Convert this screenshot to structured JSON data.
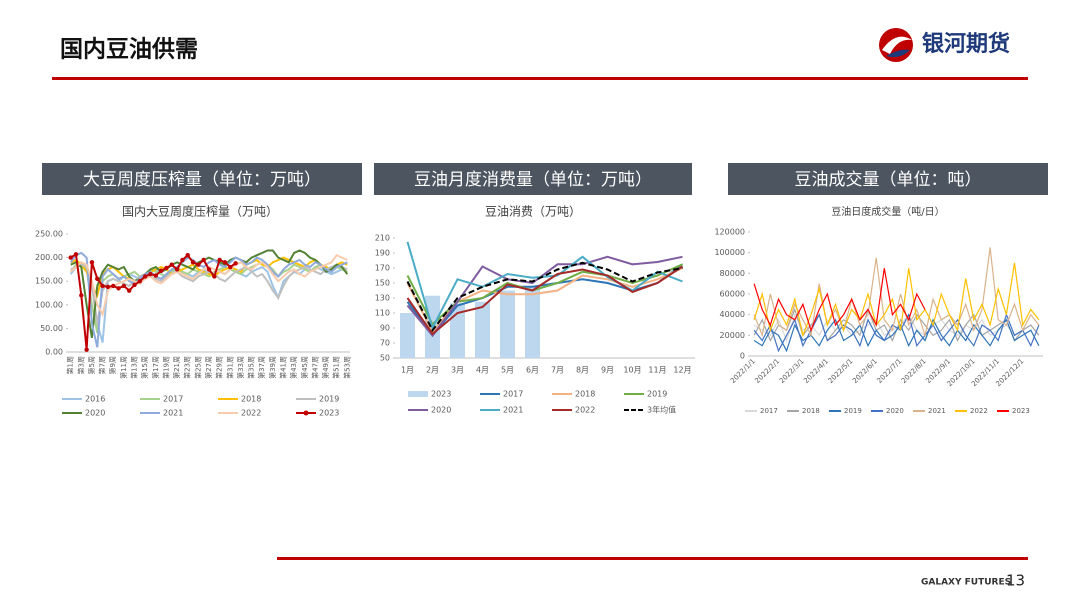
{
  "header": {
    "title": "国内豆油供需",
    "logo": "银河期货"
  },
  "footer": {
    "brand": "GALAXY FUTURES",
    "page": "13"
  },
  "chart_data": [
    {
      "type": "line",
      "header": "大豆周度压榨量（单位：万吨）",
      "title": "国内大豆周度压榨量（万吨）",
      "categories": [
        "第1周",
        null,
        "第3周",
        null,
        "第5周",
        null,
        "第7周",
        null,
        "第9周",
        null,
        "第11周",
        null,
        "第13周",
        null,
        "第15周",
        null,
        "第17周",
        null,
        "第19周",
        null,
        "第21周",
        null,
        "第23周",
        null,
        "第25周",
        null,
        "第27周",
        null,
        "第29周",
        null,
        "第31周",
        null,
        "第33周",
        null,
        "第35周",
        null,
        "第37周",
        null,
        "第39周",
        null,
        "第41周",
        null,
        "第43周",
        null,
        "第45周",
        null,
        "第47周",
        null,
        "第49周",
        null,
        "第51周",
        null,
        "第53周"
      ],
      "ylim": [
        0,
        250
      ],
      "yticks": [
        {
          "value": 0,
          "label": "0.00"
        },
        {
          "value": 50,
          "label": "50.00"
        },
        {
          "value": 100,
          "label": "100.00"
        },
        {
          "value": 150,
          "label": "150.00"
        },
        {
          "value": 200,
          "label": "200.00"
        },
        {
          "value": 250,
          "label": "250.00"
        }
      ],
      "grid": false,
      "series": [
        {
          "name": "2016",
          "color": "#9dc3e6",
          "values": [
            165,
            180,
            185,
            170,
            140,
            60,
            20,
            150,
            155,
            150,
            160,
            165,
            160,
            155,
            165,
            170,
            175,
            165,
            160,
            170,
            175,
            170,
            165,
            160,
            170,
            175,
            165,
            160,
            170,
            165,
            175,
            170,
            165,
            160,
            170,
            175,
            180,
            170,
            140,
            115,
            150,
            160,
            170,
            165,
            175,
            170,
            180,
            175,
            170,
            165,
            170,
            175,
            170
          ]
        },
        {
          "name": "2017",
          "color": "#a9d18e",
          "values": [
            170,
            185,
            190,
            175,
            100,
            40,
            150,
            160,
            165,
            155,
            160,
            165,
            170,
            160,
            165,
            175,
            170,
            165,
            160,
            170,
            180,
            170,
            165,
            175,
            170,
            165,
            160,
            170,
            175,
            180,
            175,
            170,
            165,
            175,
            180,
            185,
            190,
            185,
            175,
            160,
            170,
            175,
            185,
            180,
            175,
            170,
            180,
            185,
            175,
            170,
            180,
            175,
            170
          ]
        },
        {
          "name": "2018",
          "color": "#ffc000",
          "values": [
            190,
            195,
            185,
            170,
            140,
            120,
            165,
            175,
            180,
            170,
            160,
            155,
            150,
            145,
            160,
            170,
            175,
            180,
            175,
            165,
            170,
            175,
            180,
            185,
            175,
            170,
            165,
            160,
            170,
            175,
            180,
            175,
            170,
            185,
            190,
            195,
            185,
            180,
            190,
            195,
            200,
            195,
            190,
            185,
            180,
            190,
            195,
            185,
            180,
            175,
            185,
            190,
            185
          ]
        },
        {
          "name": "2019",
          "color": "#bfbfbf",
          "values": [
            175,
            180,
            185,
            180,
            140,
            60,
            130,
            150,
            155,
            150,
            145,
            140,
            150,
            160,
            165,
            160,
            155,
            150,
            160,
            165,
            170,
            160,
            155,
            150,
            160,
            165,
            170,
            165,
            155,
            150,
            160,
            170,
            175,
            180,
            170,
            160,
            165,
            150,
            130,
            115,
            140,
            160,
            170,
            175,
            180,
            175,
            170,
            165,
            175,
            180,
            185,
            180,
            175
          ]
        },
        {
          "name": "2020",
          "color": "#548235",
          "values": [
            185,
            190,
            180,
            100,
            30,
            140,
            170,
            185,
            180,
            175,
            180,
            160,
            150,
            155,
            165,
            175,
            180,
            170,
            175,
            185,
            190,
            185,
            180,
            175,
            190,
            195,
            200,
            195,
            190,
            185,
            195,
            200,
            195,
            190,
            200,
            205,
            210,
            215,
            215,
            200,
            195,
            190,
            210,
            215,
            210,
            200,
            195,
            185,
            170,
            175,
            185,
            180,
            165
          ]
        },
        {
          "name": "2021",
          "color": "#8faadc",
          "values": [
            190,
            205,
            210,
            200,
            60,
            10,
            160,
            175,
            165,
            155,
            160,
            150,
            145,
            155,
            165,
            170,
            160,
            155,
            165,
            175,
            180,
            190,
            200,
            195,
            185,
            180,
            190,
            195,
            185,
            180,
            190,
            200,
            195,
            185,
            190,
            200,
            195,
            185,
            170,
            160,
            175,
            185,
            190,
            195,
            185,
            180,
            190,
            185,
            175,
            170,
            180,
            185,
            190
          ]
        },
        {
          "name": "2022",
          "color": "#f8cbad",
          "values": [
            170,
            180,
            190,
            185,
            150,
            100,
            80,
            130,
            140,
            145,
            150,
            155,
            150,
            145,
            155,
            160,
            150,
            145,
            155,
            165,
            170,
            165,
            160,
            155,
            165,
            175,
            180,
            175,
            170,
            165,
            175,
            185,
            190,
            180,
            175,
            185,
            190,
            180,
            165,
            150,
            160,
            170,
            175,
            165,
            160,
            170,
            175,
            180,
            185,
            190,
            205,
            200,
            195
          ]
        },
        {
          "name": "2023",
          "color": "#c00000",
          "marker": true,
          "values": [
            200,
            207,
            120,
            5,
            190,
            155,
            140,
            138,
            140,
            135,
            140,
            130,
            142,
            150,
            160,
            165,
            162,
            172,
            178,
            185,
            175,
            195,
            205,
            190,
            185,
            195,
            175,
            160,
            195,
            190,
            180,
            188,
            null,
            null,
            null,
            null,
            null,
            null,
            null,
            null,
            null,
            null,
            null,
            null,
            null,
            null,
            null,
            null,
            null,
            null,
            null,
            null,
            null
          ]
        }
      ]
    },
    {
      "type": "bar-line",
      "header": "豆油月度消费量（单位：万吨）",
      "title": "豆油消费（万吨）",
      "categories": [
        "1月",
        "2月",
        "3月",
        "4月",
        "5月",
        "6月",
        "7月",
        "8月",
        "9月",
        "10月",
        "11月",
        "12月"
      ],
      "ylim": [
        50,
        210
      ],
      "yticks": [
        50,
        70,
        90,
        110,
        130,
        150,
        170,
        190,
        210
      ],
      "grid": false,
      "series": [
        {
          "name": "2023",
          "color": "#bdd7ee",
          "kind": "bar",
          "values": [
            110,
            133,
            123,
            125,
            140,
            146,
            null,
            null,
            null,
            null,
            null,
            null
          ]
        },
        {
          "name": "2017",
          "color": "#2e75b6",
          "values": [
            125,
            80,
            120,
            130,
            145,
            145,
            150,
            155,
            150,
            140,
            150,
            175
          ]
        },
        {
          "name": "2018",
          "color": "#f4b183",
          "values": [
            150,
            85,
            125,
            140,
            135,
            135,
            140,
            160,
            155,
            145,
            155,
            170
          ]
        },
        {
          "name": "2019",
          "color": "#70ad47",
          "values": [
            160,
            95,
            125,
            130,
            150,
            140,
            150,
            165,
            160,
            150,
            160,
            175
          ]
        },
        {
          "name": "2020",
          "color": "#7f5ca0",
          "values": [
            120,
            80,
            125,
            172,
            155,
            150,
            175,
            175,
            185,
            175,
            178,
            185
          ]
        },
        {
          "name": "2021",
          "color": "#4bacc6",
          "values": [
            205,
            90,
            155,
            145,
            162,
            157,
            160,
            185,
            158,
            140,
            165,
            152
          ]
        },
        {
          "name": "2022",
          "color": "#a52a2a",
          "values": [
            130,
            82,
            110,
            118,
            148,
            140,
            162,
            168,
            160,
            138,
            150,
            172
          ]
        },
        {
          "name": "3年均值",
          "color": "#000000",
          "dash": true,
          "values": [
            152,
            87,
            130,
            145,
            155,
            152,
            168,
            177,
            168,
            152,
            164,
            170
          ]
        }
      ]
    },
    {
      "type": "line",
      "header": "豆油成交量（单位：吨）",
      "title": "豆油日度成交量（吨/日）",
      "categories": [
        "2022/1/1",
        null,
        null,
        "2022/2/1",
        null,
        null,
        "2022/3/1",
        null,
        null,
        "2022/4/1",
        null,
        null,
        "2022/5/1",
        null,
        null,
        "2022/6/1",
        null,
        null,
        "2022/7/1",
        null,
        null,
        "2022/8/1",
        null,
        null,
        "2022/9/1",
        null,
        null,
        "2022/10/1",
        null,
        null,
        "2022/11/1",
        null,
        null,
        "2022/12/1",
        null,
        null
      ],
      "ylim": [
        0,
        120000
      ],
      "yticks": [
        0,
        20000,
        40000,
        60000,
        80000,
        100000,
        120000
      ],
      "grid": false,
      "series": [
        {
          "name": "2017",
          "color": "#d9d9d9",
          "values": [
            30000,
            25000,
            20000,
            35000,
            15000,
            40000,
            25000,
            30000,
            20000,
            35000,
            25000,
            30000,
            20000,
            25000,
            30000,
            35000,
            20000,
            25000,
            30000,
            40000,
            25000,
            20000,
            30000,
            35000,
            25000,
            20000,
            30000,
            25000,
            35000,
            20000,
            25000,
            30000,
            20000,
            25000,
            30000,
            20000
          ]
        },
        {
          "name": "2018",
          "color": "#a6a6a6",
          "values": [
            20000,
            35000,
            15000,
            30000,
            25000,
            45000,
            20000,
            30000,
            40000,
            15000,
            25000,
            35000,
            30000,
            20000,
            45000,
            25000,
            30000,
            15000,
            35000,
            25000,
            40000,
            30000,
            20000,
            25000,
            35000,
            15000,
            30000,
            40000,
            20000,
            25000,
            30000,
            35000,
            15000,
            25000,
            30000,
            20000
          ]
        },
        {
          "name": "2019",
          "color": "#2e75b6",
          "values": [
            15000,
            10000,
            25000,
            20000,
            5000,
            30000,
            15000,
            20000,
            10000,
            25000,
            35000,
            15000,
            20000,
            30000,
            10000,
            25000,
            15000,
            20000,
            30000,
            10000,
            25000,
            15000,
            35000,
            20000,
            10000,
            25000,
            15000,
            30000,
            20000,
            10000,
            25000,
            35000,
            15000,
            20000,
            25000,
            10000
          ]
        },
        {
          "name": "2020",
          "color": "#4472c4",
          "values": [
            25000,
            15000,
            30000,
            5000,
            20000,
            35000,
            10000,
            25000,
            40000,
            15000,
            20000,
            30000,
            25000,
            10000,
            35000,
            20000,
            15000,
            30000,
            25000,
            40000,
            10000,
            20000,
            30000,
            15000,
            25000,
            35000,
            20000,
            10000,
            30000,
            25000,
            15000,
            40000,
            20000,
            25000,
            10000,
            30000
          ]
        },
        {
          "name": "2021",
          "color": "#d9b38c",
          "values": [
            40000,
            20000,
            60000,
            30000,
            25000,
            50000,
            35000,
            20000,
            70000,
            30000,
            45000,
            25000,
            55000,
            30000,
            40000,
            95000,
            35000,
            25000,
            60000,
            30000,
            45000,
            20000,
            55000,
            35000,
            40000,
            30000,
            50000,
            25000,
            45000,
            105000,
            35000,
            30000,
            50000,
            25000,
            40000,
            30000
          ]
        },
        {
          "name": "2022",
          "color": "#ffc000",
          "values": [
            35000,
            60000,
            25000,
            45000,
            30000,
            55000,
            20000,
            40000,
            65000,
            30000,
            50000,
            25000,
            45000,
            35000,
            60000,
            30000,
            40000,
            55000,
            25000,
            85000,
            35000,
            45000,
            30000,
            60000,
            40000,
            25000,
            75000,
            35000,
            50000,
            30000,
            65000,
            40000,
            90000,
            30000,
            45000,
            35000
          ]
        },
        {
          "name": "2023",
          "color": "#ff0000",
          "values": [
            70000,
            45000,
            30000,
            55000,
            40000,
            35000,
            50000,
            25000,
            45000,
            60000,
            30000,
            40000,
            55000,
            35000,
            45000,
            30000,
            85000,
            40000,
            50000,
            35000,
            60000,
            45000,
            null,
            null,
            null,
            null,
            null,
            null,
            null,
            null,
            null,
            null,
            null,
            null,
            null,
            null
          ]
        }
      ]
    }
  ]
}
